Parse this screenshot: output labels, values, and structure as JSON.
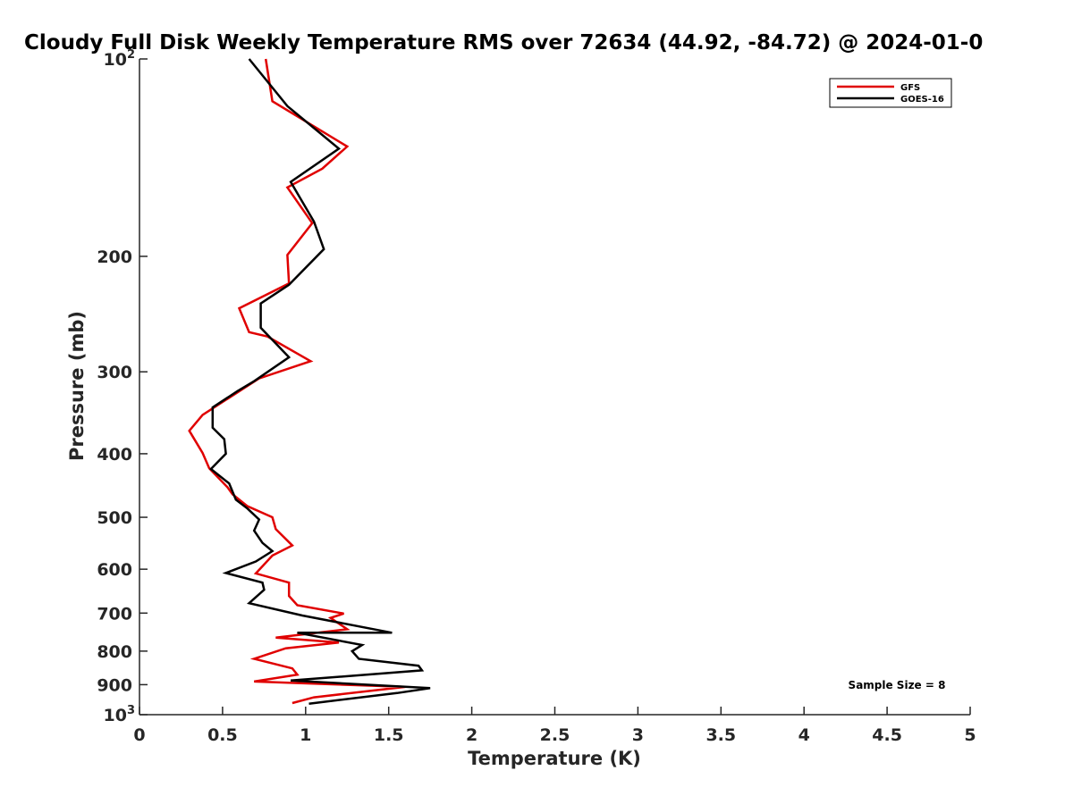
{
  "chart_data": {
    "type": "line",
    "title": "Cloudy Full Disk Weekly Temperature RMS over 72634 (44.92, -84.72) @ 2024-01-0",
    "xlabel": "Temperature (K)",
    "ylabel": "Pressure (mb)",
    "xlim": [
      0,
      5
    ],
    "ylim": [
      100,
      1000
    ],
    "yscale": "log",
    "y_reversed": true,
    "x_ticks": [
      "0",
      "0.5",
      "1",
      "1.5",
      "2",
      "2.5",
      "3",
      "3.5",
      "4",
      "4.5",
      "5"
    ],
    "y_ticks": [
      {
        "value": 100,
        "base": "10",
        "exp": "2"
      },
      {
        "value": 200,
        "label": "200"
      },
      {
        "value": 300,
        "label": "300"
      },
      {
        "value": 400,
        "label": "400"
      },
      {
        "value": 500,
        "label": "500"
      },
      {
        "value": 600,
        "label": "600"
      },
      {
        "value": 700,
        "label": "700"
      },
      {
        "value": 800,
        "label": "800"
      },
      {
        "value": 900,
        "label": "900"
      },
      {
        "value": 1000,
        "base": "10",
        "exp": "3"
      }
    ],
    "legend_position": "top-right",
    "annotation": "Sample Size = 8",
    "series": [
      {
        "name": "GFS",
        "color": "#e00000",
        "points": [
          [
            0.76,
            100
          ],
          [
            0.8,
            116
          ],
          [
            1.25,
            136
          ],
          [
            1.1,
            147
          ],
          [
            0.89,
            157
          ],
          [
            1.04,
            178
          ],
          [
            0.89,
            199
          ],
          [
            0.9,
            220
          ],
          [
            0.6,
            240
          ],
          [
            0.66,
            261
          ],
          [
            0.77,
            265
          ],
          [
            1.03,
            289
          ],
          [
            0.72,
            307
          ],
          [
            0.38,
            349
          ],
          [
            0.3,
            369
          ],
          [
            0.38,
            399
          ],
          [
            0.42,
            421
          ],
          [
            0.53,
            450
          ],
          [
            0.56,
            461
          ],
          [
            0.65,
            481
          ],
          [
            0.8,
            500
          ],
          [
            0.82,
            521
          ],
          [
            0.92,
            552
          ],
          [
            0.8,
            572
          ],
          [
            0.7,
            609
          ],
          [
            0.9,
            629
          ],
          [
            0.9,
            659
          ],
          [
            0.95,
            681
          ],
          [
            1.23,
            701
          ],
          [
            1.15,
            712
          ],
          [
            1.25,
            741
          ],
          [
            0.82,
            763
          ],
          [
            1.2,
            776
          ],
          [
            0.88,
            792
          ],
          [
            0.69,
            822
          ],
          [
            0.92,
            850
          ],
          [
            0.95,
            869
          ],
          [
            0.69,
            890
          ],
          [
            1.6,
            907
          ],
          [
            1.05,
            941
          ],
          [
            0.92,
            960
          ]
        ]
      },
      {
        "name": "GOES-16",
        "color": "#000000",
        "points": [
          [
            0.66,
            100
          ],
          [
            0.89,
            118
          ],
          [
            1.2,
            137
          ],
          [
            0.91,
            154
          ],
          [
            1.05,
            177
          ],
          [
            1.11,
            195
          ],
          [
            0.9,
            221
          ],
          [
            0.73,
            236
          ],
          [
            0.73,
            257
          ],
          [
            0.9,
            285
          ],
          [
            0.69,
            310
          ],
          [
            0.59,
            321
          ],
          [
            0.44,
            340
          ],
          [
            0.44,
            365
          ],
          [
            0.51,
            380
          ],
          [
            0.52,
            400
          ],
          [
            0.43,
            422
          ],
          [
            0.54,
            444
          ],
          [
            0.58,
            470
          ],
          [
            0.65,
            485
          ],
          [
            0.72,
            504
          ],
          [
            0.69,
            524
          ],
          [
            0.74,
            547
          ],
          [
            0.8,
            563
          ],
          [
            0.7,
            584
          ],
          [
            0.52,
            608
          ],
          [
            0.74,
            629
          ],
          [
            0.75,
            645
          ],
          [
            0.66,
            676
          ],
          [
            0.98,
            706
          ],
          [
            1.52,
            750
          ],
          [
            0.95,
            750
          ],
          [
            1.34,
            783
          ],
          [
            1.28,
            800
          ],
          [
            1.32,
            822
          ],
          [
            1.68,
            842
          ],
          [
            1.7,
            856
          ],
          [
            0.91,
            887
          ],
          [
            1.75,
            911
          ],
          [
            1.55,
            927
          ],
          [
            1.02,
            962
          ]
        ]
      }
    ]
  }
}
